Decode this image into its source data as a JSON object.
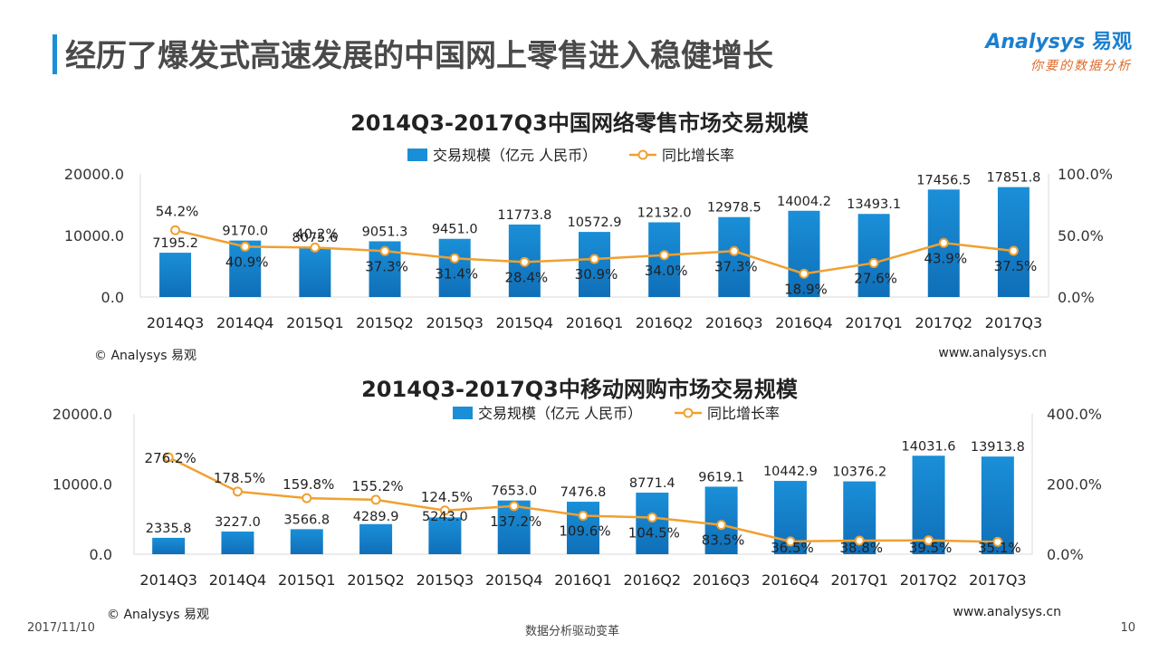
{
  "page": {
    "title": "经历了爆发式高速发展的中国网上零售进入稳健增长"
  },
  "logo": {
    "brand": "nalysys",
    "brand_prefix": "A",
    "brand_cn": "易观",
    "tagline": "你要的数据分析"
  },
  "colors": {
    "bar": "#1a8fd8",
    "bar_dark": "#0f6fb8",
    "line": "#f0a030",
    "accent_bar": "#1a8fd8"
  },
  "footer": {
    "date": "2017/11/10",
    "center": "数据分析驱动变革",
    "page_number": "10"
  },
  "chart_data": [
    {
      "type": "bar",
      "title": "2014Q3-2017Q3中国网络零售市场交易规模",
      "categories": [
        "2014Q3",
        "2014Q4",
        "2015Q1",
        "2015Q2",
        "2015Q3",
        "2015Q4",
        "2016Q1",
        "2016Q2",
        "2016Q3",
        "2016Q4",
        "2017Q1",
        "2017Q2",
        "2017Q3"
      ],
      "series": [
        {
          "name": "交易规模（亿元  人民币）",
          "type": "bar",
          "axis": "left",
          "values": [
            7195.2,
            9170.0,
            8075.6,
            9051.3,
            9451.0,
            11773.8,
            10572.9,
            12132.0,
            12978.5,
            14004.2,
            13493.1,
            17456.5,
            17851.8
          ],
          "labels": [
            "7195.2",
            "9170.0",
            "8075.6",
            "9051.3",
            "9451.0",
            "11773.8",
            "10572.9",
            "12132.0",
            "12978.5",
            "14004.2",
            "13493.1",
            "17456.5",
            "17851.8"
          ]
        },
        {
          "name": "同比增长率",
          "type": "line",
          "axis": "right",
          "values": [
            54.2,
            40.9,
            40.2,
            37.3,
            31.4,
            28.4,
            30.9,
            34.0,
            37.3,
            18.9,
            27.6,
            43.9,
            37.5
          ],
          "labels": [
            "54.2%",
            "40.9%",
            "40.2%",
            "37.3%",
            "31.4%",
            "28.4%",
            "30.9%",
            "34.0%",
            "37.3%",
            "18.9%",
            "27.6%",
            "43.9%",
            "37.5%"
          ]
        }
      ],
      "y_left": {
        "ticks": [
          "0.0",
          "10000.0",
          "20000.0"
        ],
        "range": [
          0,
          20000
        ]
      },
      "y_right": {
        "ticks": [
          "0.0%",
          "50.0%",
          "100.0%"
        ],
        "range": [
          0,
          100
        ]
      },
      "legend": "top",
      "grid": false,
      "credit_left": "© Analysys 易观",
      "credit_right": "www.analysys.cn"
    },
    {
      "type": "bar",
      "title": "2014Q3-2017Q3中移动网购市场交易规模",
      "categories": [
        "2014Q3",
        "2014Q4",
        "2015Q1",
        "2015Q2",
        "2015Q3",
        "2015Q4",
        "2016Q1",
        "2016Q2",
        "2016Q3",
        "2016Q4",
        "2017Q1",
        "2017Q2",
        "2017Q3"
      ],
      "series": [
        {
          "name": "交易规模（亿元 人民币）",
          "type": "bar",
          "axis": "left",
          "values": [
            2335.8,
            3227.0,
            3566.8,
            4289.9,
            5243.0,
            7653.0,
            7476.8,
            8771.4,
            9619.1,
            10442.9,
            10376.2,
            14031.6,
            13913.8
          ],
          "labels": [
            "2335.8",
            "3227.0",
            "3566.8",
            "4289.9",
            "5243.0",
            "7653.0",
            "7476.8",
            "8771.4",
            "9619.1",
            "10442.9",
            "10376.2",
            "14031.6",
            "13913.8"
          ]
        },
        {
          "name": "同比增长率",
          "type": "line",
          "axis": "right",
          "values": [
            276.2,
            178.5,
            159.8,
            155.2,
            124.5,
            137.2,
            109.6,
            104.5,
            83.5,
            36.5,
            38.8,
            39.5,
            35.1
          ],
          "labels": [
            "276.2%",
            "178.5%",
            "159.8%",
            "155.2%",
            "124.5%",
            "137.2%",
            "109.6%",
            "104.5%",
            "83.5%",
            "36.5%",
            "38.8%",
            "39.5%",
            "35.1%"
          ]
        }
      ],
      "y_left": {
        "ticks": [
          "0.0",
          "10000.0",
          "20000.0"
        ],
        "range": [
          0,
          20000
        ]
      },
      "y_right": {
        "ticks": [
          "0.0%",
          "200.0%",
          "400.0%"
        ],
        "range": [
          0,
          400
        ]
      },
      "legend": "top",
      "grid": false,
      "credit_left": "© Analysys 易观",
      "credit_right": "www.analysys.cn"
    }
  ]
}
